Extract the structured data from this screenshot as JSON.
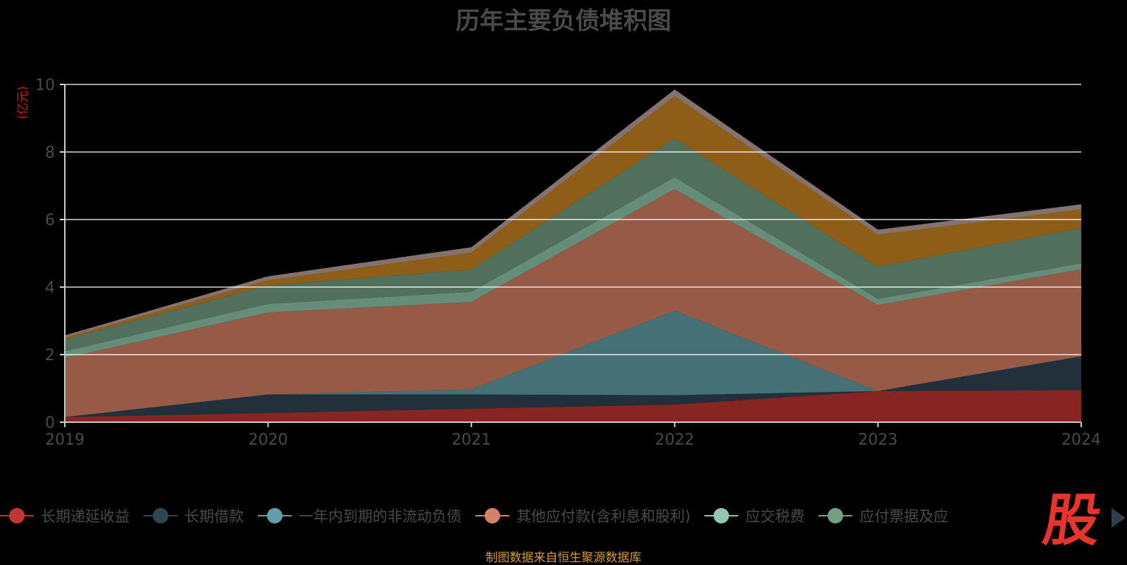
{
  "chart_data": {
    "type": "area",
    "stacked": true,
    "title": "历年主要负债堆积图",
    "ylabel": "(亿元)",
    "x": [
      "2019",
      "2020",
      "2021",
      "2022",
      "2023",
      "2024"
    ],
    "ylim": [
      0,
      10
    ],
    "yticks": [
      0,
      2,
      4,
      6,
      8,
      10
    ],
    "grid": true,
    "legend_position": "bottom",
    "series": [
      {
        "name": "长期递延收益",
        "color": "#c23531",
        "values": [
          0.15,
          0.27,
          0.4,
          0.52,
          0.92,
          0.95
        ]
      },
      {
        "name": "长期借款",
        "color": "#2f4554",
        "values": [
          0.0,
          0.55,
          0.42,
          0.28,
          0.0,
          1.0
        ]
      },
      {
        "name": "一年内到期的非流动负债",
        "color": "#61a0a8",
        "values": [
          0.0,
          0.0,
          0.15,
          2.5,
          0.0,
          0.0
        ]
      },
      {
        "name": "其他应付款(含利息和股利)",
        "color": "#d48265",
        "values": [
          1.75,
          2.43,
          2.59,
          3.6,
          2.55,
          2.58
        ]
      },
      {
        "name": "应交税费",
        "color": "#91c7ae",
        "values": [
          0.2,
          0.25,
          0.3,
          0.35,
          0.18,
          0.17
        ]
      },
      {
        "name": "应付票据及应付账款",
        "color": "#749f83",
        "values": [
          0.35,
          0.55,
          0.66,
          1.15,
          0.95,
          1.05
        ]
      },
      {
        "name": "",
        "color": "#ca8622",
        "values": [
          0.05,
          0.15,
          0.5,
          1.25,
          0.95,
          0.55
        ]
      },
      {
        "name": "",
        "color": "#bda29a",
        "values": [
          0.07,
          0.12,
          0.16,
          0.2,
          0.15,
          0.15
        ]
      }
    ]
  },
  "legend_visible": [
    "长期递延收益",
    "长期借款",
    "一年内到期的非流动负债",
    "其他应付款(含利息和股利)",
    "应交税费",
    "应付票据及应"
  ],
  "logo_text": "股",
  "source_text": "制图数据来自恒生聚源数据库"
}
